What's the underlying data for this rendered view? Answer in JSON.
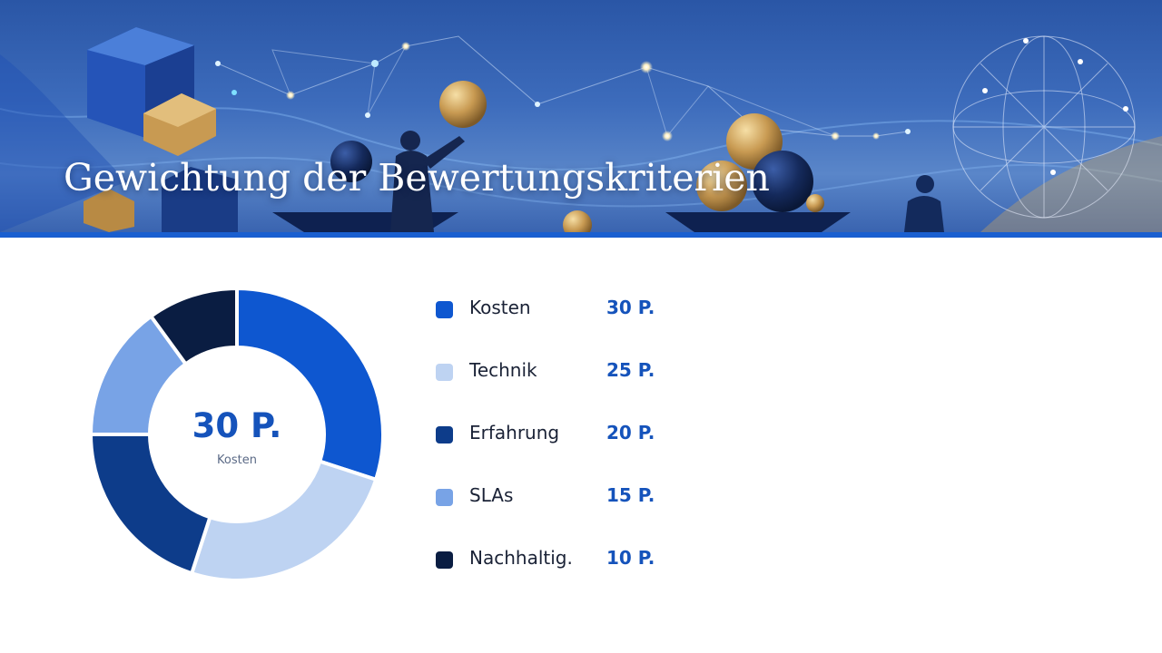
{
  "header": {
    "title": "Gewichtung der Bewertungskriterien"
  },
  "center": {
    "value": "30 P.",
    "label": "Kosten"
  },
  "legend": [
    {
      "label": "Kosten",
      "value": "30 P.",
      "color": "#0e57d0"
    },
    {
      "label": "Technik",
      "value": "25 P.",
      "color": "#bed3f2"
    },
    {
      "label": "Erfahrung",
      "value": "20 P.",
      "color": "#0d3c8a"
    },
    {
      "label": "SLAs",
      "value": "15 P.",
      "color": "#78a3e6"
    },
    {
      "label": "Nachhaltig.",
      "value": "10 P.",
      "color": "#0a1d42"
    }
  ],
  "chart_data": {
    "type": "pie",
    "donut": true,
    "categories": [
      "Kosten",
      "Technik",
      "Erfahrung",
      "SLAs",
      "Nachhaltig."
    ],
    "values": [
      30,
      25,
      20,
      15,
      10
    ],
    "unit": "P.",
    "colors": [
      "#0e57d0",
      "#bed3f2",
      "#0d3c8a",
      "#78a3e6",
      "#0a1d42"
    ],
    "legend_position": "right"
  }
}
